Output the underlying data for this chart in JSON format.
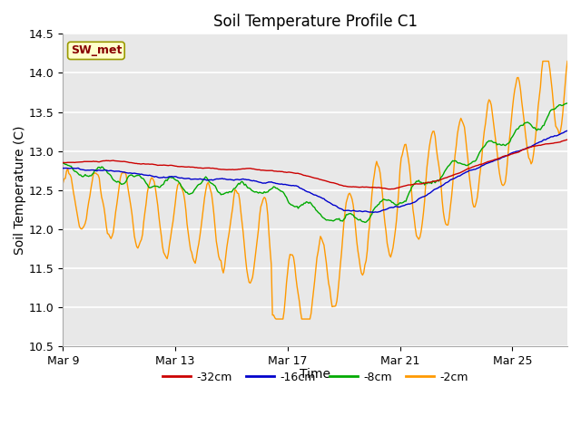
{
  "title": "Soil Temperature Profile C1",
  "xlabel": "Time",
  "ylabel": "Soil Temperature (C)",
  "ylim": [
    10.5,
    14.5
  ],
  "yticks": [
    10.5,
    11.0,
    11.5,
    12.0,
    12.5,
    13.0,
    13.5,
    14.0,
    14.5
  ],
  "x_tick_labels": [
    "Mar 9",
    "Mar 13",
    "Mar 17",
    "Mar 21",
    "Mar 25"
  ],
  "x_tick_positions": [
    0,
    96,
    192,
    288,
    384
  ],
  "total_points": 432,
  "annotation_label": "SW_met",
  "annotation_color": "#880000",
  "annotation_bg": "#ffffcc",
  "annotation_edge": "#999900",
  "legend_entries": [
    "-32cm",
    "-16cm",
    "-8cm",
    "-2cm"
  ],
  "line_colors": [
    "#cc0000",
    "#0000cc",
    "#00aa00",
    "#ff9900"
  ],
  "fig_bg_color": "#ffffff",
  "plot_bg_color": "#e8e8e8",
  "grid_color": "#ffffff",
  "linewidth": 1.0,
  "title_fontsize": 12,
  "axis_fontsize": 9,
  "label_fontsize": 10
}
